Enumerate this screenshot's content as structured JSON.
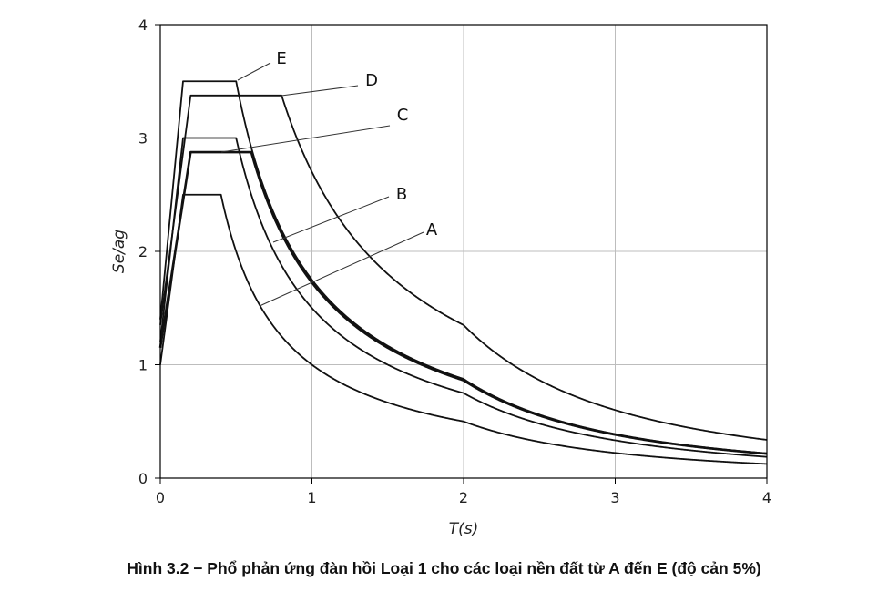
{
  "caption": "Hình 3.2 − Phổ phản ứng đàn hồi Loại 1 cho các loại nền đất từ A đến E (độ cản 5%)",
  "chart_data": {
    "type": "line",
    "xlabel": "T(s)",
    "ylabel": "Se/ag",
    "xlim": [
      0,
      4
    ],
    "ylim": [
      0,
      4
    ],
    "xticks": [
      "0",
      "1",
      "2",
      "3",
      "4"
    ],
    "yticks": [
      "0",
      "1",
      "2",
      "3",
      "4"
    ],
    "grid": true,
    "series": [
      {
        "name": "A",
        "S": 1.0,
        "TB": 0.15,
        "TC": 0.4,
        "TD": 2.0
      },
      {
        "name": "B",
        "S": 1.2,
        "TB": 0.15,
        "TC": 0.5,
        "TD": 2.0
      },
      {
        "name": "C",
        "S": 1.15,
        "TB": 0.2,
        "TC": 0.6,
        "TD": 2.0
      },
      {
        "name": "D",
        "S": 1.35,
        "TB": 0.2,
        "TC": 0.8,
        "TD": 2.0
      },
      {
        "name": "E",
        "S": 1.4,
        "TB": 0.15,
        "TC": 0.5,
        "TD": 2.0
      }
    ],
    "eta": 1.0,
    "plateau_factor": 2.5
  }
}
